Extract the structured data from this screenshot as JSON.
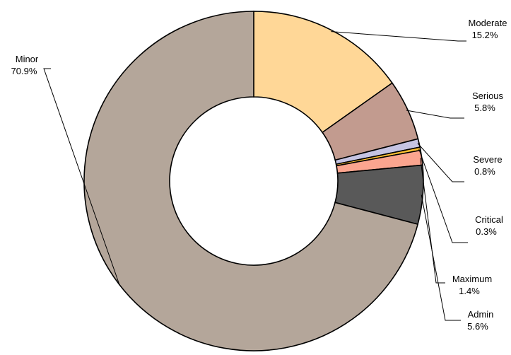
{
  "chart_data": {
    "type": "pie",
    "donut": true,
    "legend": "none",
    "categories": [
      "Moderate",
      "Serious",
      "Severe",
      "Critical",
      "Maximum",
      "Admin",
      "Minor"
    ],
    "values": [
      15.2,
      5.8,
      0.8,
      0.3,
      1.4,
      5.6,
      70.9
    ],
    "value_labels": [
      "15.2%",
      "5.8%",
      "0.8%",
      "0.3%",
      "1.4%",
      "5.6%",
      "70.9%"
    ],
    "colors": [
      "#FFD797",
      "#C29B8F",
      "#C5C4E3",
      "#FFC133",
      "#FBA58F",
      "#595959",
      "#B4A69A"
    ]
  }
}
